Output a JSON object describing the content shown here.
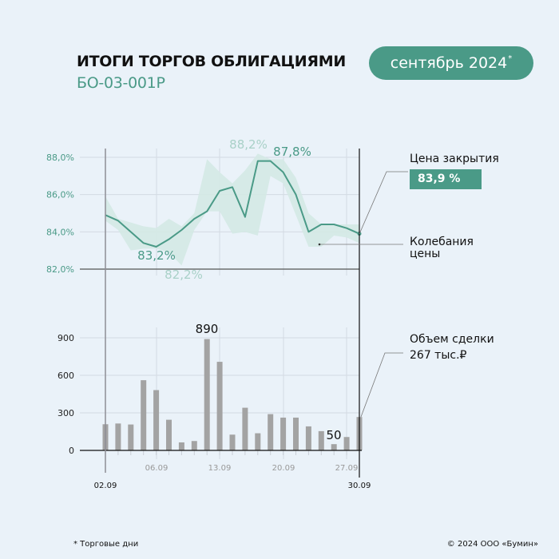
{
  "header": {
    "title": "ИТОГИ ТОРГОВ ОБЛИГАЦИЯМИ",
    "subtitle": "БО-03-001Р",
    "period": "сентябрь 2024",
    "period_mark": "*"
  },
  "legend": {
    "close_label": "Цена закрытия",
    "close_value": "83,9 %",
    "range_label_1": "Колебания",
    "range_label_2": "цены",
    "volume_label": "Объем сделки",
    "volume_value": "267 тыс.₽"
  },
  "footer": {
    "note": "* Торговые дни",
    "copyright": "© 2024 ООО «Бумин»"
  },
  "colors": {
    "accent": "#4a9a87",
    "band": "#d4e9e4",
    "light_label": "#a9d1c8",
    "bars": "#a3a3a3",
    "background": "#eaf2f9"
  },
  "chart_data": [
    {
      "type": "line",
      "x": [
        "02.09",
        "03.09",
        "04.09",
        "05.09",
        "06.09",
        "09.09",
        "10.09",
        "11.09",
        "12.09",
        "13.09",
        "16.09",
        "17.09",
        "18.09",
        "19.09",
        "20.09",
        "23.09",
        "24.09",
        "25.09",
        "26.09",
        "27.09",
        "30.09"
      ],
      "series": [
        {
          "values": [
            84.9,
            84.6,
            84.0,
            83.4,
            83.2,
            83.6,
            84.1,
            84.7,
            85.1,
            86.2,
            86.4,
            84.8,
            87.8,
            87.8,
            87.2,
            86.0,
            84.0,
            84.4,
            84.4,
            84.2,
            83.9
          ]
        },
        {
          "type": "area-range",
          "high": [
            85.9,
            84.7,
            84.5,
            84.3,
            84.2,
            84.7,
            84.3,
            85.0,
            87.9,
            87.2,
            86.6,
            87.3,
            88.2,
            87.9,
            87.9,
            86.9,
            85.0,
            84.4,
            84.4,
            84.4,
            84.4
          ],
          "low": [
            84.6,
            84.1,
            83.0,
            83.1,
            83.1,
            82.9,
            82.2,
            84.1,
            85.1,
            85.1,
            83.9,
            84.0,
            83.8,
            87.0,
            86.6,
            84.9,
            83.2,
            83.2,
            83.8,
            83.7,
            83.4
          ]
        }
      ],
      "yticks": [
        "82,0%",
        "84,0%",
        "86,0%",
        "88,0%"
      ],
      "ylim": [
        82,
        88
      ],
      "annotations": [
        {
          "text": "88,2%",
          "value": 88.2,
          "kind": "max-range"
        },
        {
          "text": "87,8%",
          "value": 87.8,
          "kind": "max-close"
        },
        {
          "text": "83,2%",
          "value": 83.2,
          "kind": "min-close"
        },
        {
          "text": "82,2%",
          "value": 82.2,
          "kind": "min-range"
        }
      ],
      "grid": true
    },
    {
      "type": "bar",
      "categories": [
        "02.09",
        "03.09",
        "04.09",
        "05.09",
        "06.09",
        "09.09",
        "10.09",
        "11.09",
        "12.09",
        "13.09",
        "16.09",
        "17.09",
        "18.09",
        "19.09",
        "20.09",
        "23.09",
        "24.09",
        "25.09",
        "26.09",
        "27.09",
        "30.09"
      ],
      "values": [
        209,
        215,
        207,
        561,
        482,
        245,
        64,
        75,
        890,
        708,
        126,
        341,
        137,
        290,
        262,
        262,
        192,
        154,
        50,
        107,
        267
      ],
      "yticks": [
        "0",
        "300",
        "600",
        "900"
      ],
      "ylim": [
        0,
        900
      ],
      "xtick_labels": [
        "02.09",
        "06.09",
        "13.09",
        "20.09",
        "27.09",
        "30.09"
      ],
      "annotations": [
        {
          "text": "890",
          "value": 890
        },
        {
          "text": "50",
          "value": 50
        }
      ],
      "grid": true
    }
  ]
}
